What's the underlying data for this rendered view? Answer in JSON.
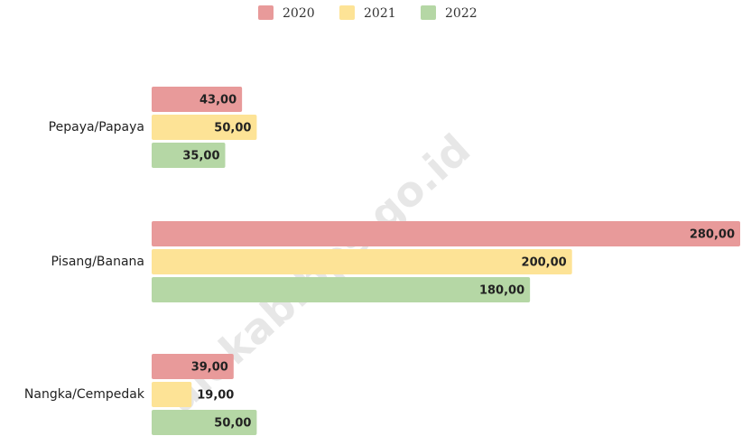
{
  "chart_data": {
    "type": "hbar",
    "categories": [
      "Pepaya/Papaya",
      "Pisang/Banana",
      "Nangka/Cempedak"
    ],
    "series": [
      {
        "name": "2020",
        "color": "#e89a9a",
        "values": [
          43,
          280,
          39
        ],
        "value_labels": [
          "43,00",
          "280,00",
          "39,00"
        ]
      },
      {
        "name": "2021",
        "color": "#fde396",
        "values": [
          50,
          200,
          19
        ],
        "value_labels": [
          "50,00",
          "200,00",
          "19,00"
        ]
      },
      {
        "name": "2022",
        "color": "#b5d7a5",
        "values": [
          35,
          180,
          50
        ],
        "value_labels": [
          "35,00",
          "180,00",
          "50,00"
        ]
      }
    ],
    "xlim": [
      0,
      280
    ],
    "legend": "top",
    "watermark": "aiokab.bps.go.id"
  }
}
